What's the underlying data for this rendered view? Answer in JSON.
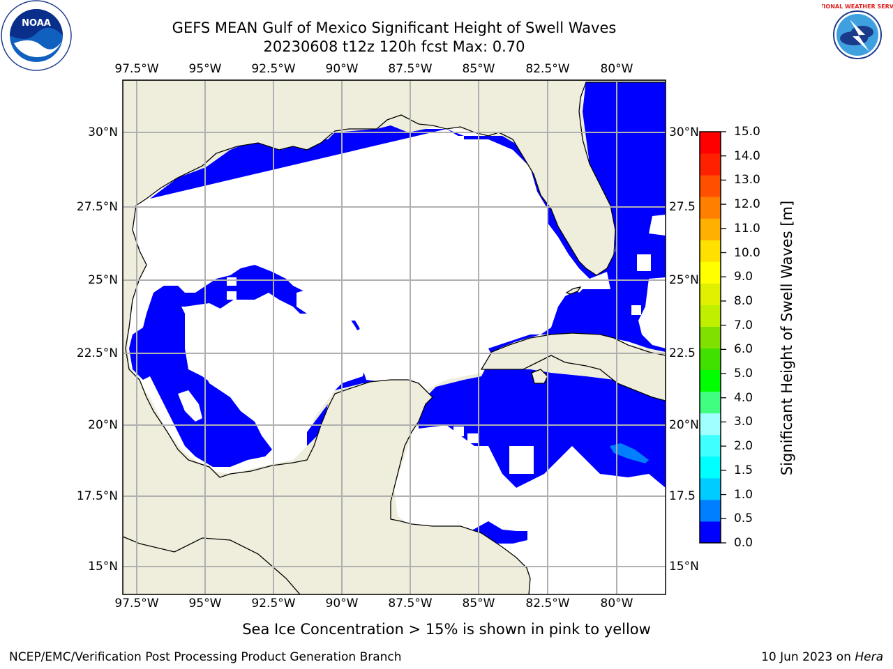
{
  "title": {
    "line1": "GEFS MEAN Gulf of Mexico Significant Height of Swell Waves",
    "line2": "20230608 t12z 120h fcst   Max: 0.70"
  },
  "lon_ticks": [
    "97.5°W",
    "95°W",
    "92.5°W",
    "90°W",
    "87.5°W",
    "85°W",
    "82.5°W",
    "80°W"
  ],
  "lat_ticks_left": [
    "30°N",
    "27.5°N",
    "25°N",
    "22.5°N",
    "20°N",
    "17.5°N",
    "15°N"
  ],
  "lat_ticks_right": [
    "30°N",
    "27.5",
    "25°N",
    "22.5",
    "20°N",
    "17.5",
    "15°N"
  ],
  "colorbar": {
    "label": "Significant Height of Swell Waves [m]",
    "ticks": [
      "15.0",
      "14.0",
      "13.0",
      "12.0",
      "11.0",
      "10.0",
      "9.0",
      "8.0",
      "7.0",
      "6.0",
      "5.0",
      "4.0",
      "3.0",
      "2.0",
      "1.5",
      "1.0",
      "0.5",
      "0.0"
    ],
    "colors": [
      "#0000ff",
      "#0080ff",
      "#00ccff",
      "#00ffff",
      "#40ffff",
      "#a0ffff",
      "#40ff80",
      "#00ff00",
      "#40e000",
      "#80e000",
      "#c0f000",
      "#e0f000",
      "#ffff00",
      "#ffe000",
      "#ffb000",
      "#ff8000",
      "#ff5000",
      "#ff2000",
      "#ff0000"
    ]
  },
  "map_colors": {
    "land": "#efeedc",
    "swell_0_05": "#0000ff",
    "swell_05_10": "#0080ff",
    "grid": "#b0b0b0"
  },
  "ice_note": "Sea Ice Concentration > 15% is shown in pink to yellow",
  "footer": {
    "left": "NCEP/EMC/Verification Post Processing Product Generation Branch",
    "date": "10 Jun 2023 on ",
    "host": "Hera"
  },
  "logos": {
    "noaa_text": "NOAA",
    "nws_text": "NATIONAL WEATHER SERVICE"
  }
}
